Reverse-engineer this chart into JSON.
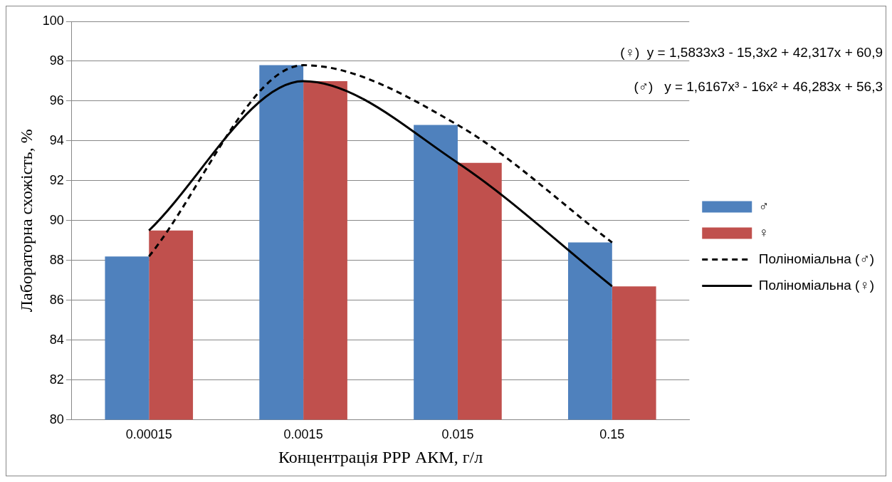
{
  "chart_data": {
    "type": "bar",
    "xlabel": "Концентрація РРР АКМ, г/л",
    "ylabel": "Лабораторна схожість, %",
    "categories": [
      "0.00015",
      "0.0015",
      "0.015",
      "0.15"
    ],
    "ylim": [
      80,
      100
    ],
    "yticks": [
      80,
      82,
      84,
      86,
      88,
      90,
      92,
      94,
      96,
      98,
      100
    ],
    "grid": "y",
    "legend": "right",
    "marker": "none",
    "series": [
      {
        "name": "♂",
        "color": "#4f81bd",
        "values": [
          88.2,
          97.8,
          94.8,
          88.9
        ]
      },
      {
        "name": "♀",
        "color": "#c0504d",
        "values": [
          89.5,
          97.0,
          92.9,
          86.7
        ]
      },
      {
        "name": "Поліноміальна (♂)",
        "type": "line",
        "line_style": "dashed",
        "color": "#000000",
        "values": [
          88.2,
          97.8,
          94.8,
          88.9
        ]
      },
      {
        "name": "Поліноміальна (♀)",
        "type": "line",
        "line_style": "solid",
        "color": "#000000",
        "values": [
          89.5,
          97.0,
          92.9,
          86.7
        ]
      }
    ],
    "annotations": [
      "(♀)  y = 1,5833x3 - 15,3x2 + 42,317x + 60,9",
      "(♂)   y = 1,6167x³ - 16x² + 46,283x + 56,3"
    ]
  }
}
